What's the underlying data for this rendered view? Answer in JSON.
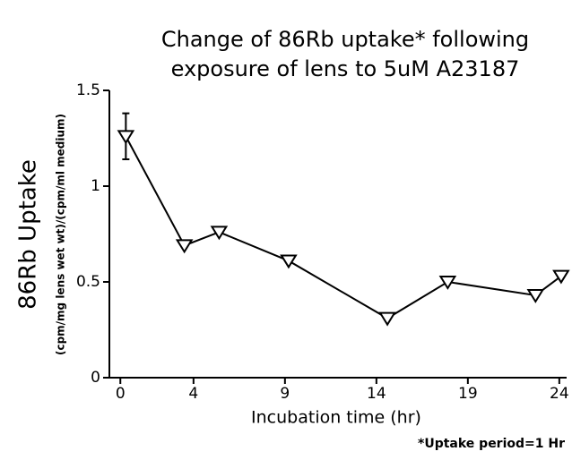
{
  "chart_data": {
    "type": "line",
    "title": [
      "Change of 86Rb uptake* following",
      "exposure of lens to 5uM A23187"
    ],
    "x_label": "Incubation time (hr)",
    "y_label": "86Rb Uptake",
    "y_sublabel": "(cpm/mg lens wet wt)/(cpm/ml medium)",
    "footnote": "*Uptake period=1 Hr",
    "x": [
      0.3,
      3.5,
      5.4,
      9.2,
      14.6,
      17.9,
      22.7,
      24.1
    ],
    "series": [
      {
        "color": "#000000",
        "values": [
          1.26,
          0.69,
          0.76,
          0.61,
          0.31,
          0.5,
          0.43,
          0.53
        ],
        "errors": [
          0.12,
          null,
          null,
          null,
          null,
          null,
          null,
          null
        ]
      }
    ],
    "xlim": [
      -0.6,
      24.4
    ],
    "ylim": [
      0,
      1.5
    ],
    "xticks": [
      0,
      4,
      9,
      14,
      19,
      24
    ],
    "yticks": [
      0,
      0.5,
      1,
      1.5
    ],
    "grid": false
  }
}
